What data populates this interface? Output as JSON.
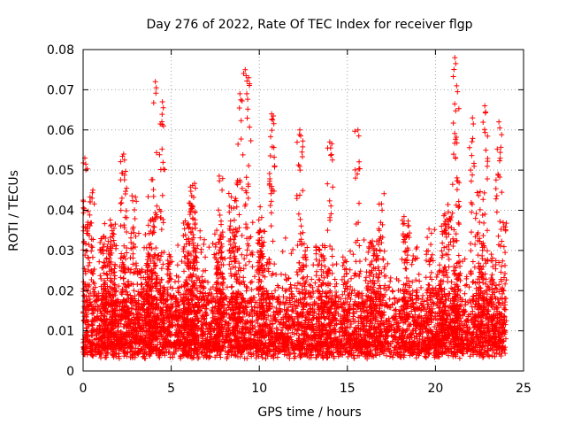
{
  "chart_data": {
    "type": "scatter",
    "title": "Day 276 of 2022, Rate Of TEC Index for receiver flgp",
    "xlabel": "GPS time / hours",
    "ylabel": "ROTI / TECUs",
    "xlim": [
      0,
      25
    ],
    "ylim": [
      0,
      0.08
    ],
    "xticks": [
      0,
      5,
      10,
      15,
      20,
      25
    ],
    "xtick_labels": [
      "0",
      "5",
      "10",
      "15",
      "20",
      "25"
    ],
    "yticks": [
      0,
      0.01,
      0.02,
      0.03,
      0.04,
      0.05,
      0.06,
      0.07,
      0.08
    ],
    "ytick_labels": [
      "0",
      "0.01",
      "0.02",
      "0.03",
      "0.04",
      "0.05",
      "0.06",
      "0.07",
      "0.08"
    ],
    "grid": true,
    "marker": "plus",
    "color": "#ff0000",
    "series": [
      {
        "name": "ROTI",
        "x_range": [
          0,
          24
        ],
        "baseline_mean": 0.011,
        "typical_range": [
          0.003,
          0.03
        ],
        "notable_peaks": [
          {
            "x": 0.1,
            "y": 0.053
          },
          {
            "x": 2.3,
            "y": 0.054
          },
          {
            "x": 4.1,
            "y": 0.072
          },
          {
            "x": 4.5,
            "y": 0.067
          },
          {
            "x": 8.9,
            "y": 0.069
          },
          {
            "x": 9.2,
            "y": 0.075
          },
          {
            "x": 9.4,
            "y": 0.073
          },
          {
            "x": 10.7,
            "y": 0.064
          },
          {
            "x": 12.3,
            "y": 0.06
          },
          {
            "x": 14.0,
            "y": 0.057
          },
          {
            "x": 15.6,
            "y": 0.06
          },
          {
            "x": 21.1,
            "y": 0.078
          },
          {
            "x": 21.2,
            "y": 0.071
          },
          {
            "x": 22.1,
            "y": 0.063
          },
          {
            "x": 22.8,
            "y": 0.066
          },
          {
            "x": 23.6,
            "y": 0.062
          }
        ]
      }
    ]
  }
}
